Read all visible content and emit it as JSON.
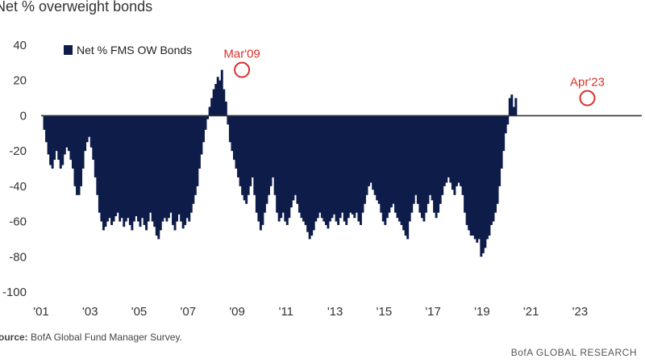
{
  "title": "Net % overweight bonds",
  "footer": {
    "source_label": "Source:",
    "source_text": "BofA Global Fund Manager Survey.",
    "brand": "BofA GLOBAL RESEARCH"
  },
  "colors": {
    "bar": "#0e1c4a",
    "annotation": "#d8322b",
    "zero_line": "#333333"
  },
  "chart_data": {
    "type": "bar",
    "title": "Net % overweight bonds",
    "legend": {
      "label": "Net % FMS OW Bonds",
      "position": "top-left"
    },
    "ylim": [
      -100,
      40
    ],
    "y_ticks": [
      40,
      20,
      0,
      -20,
      -40,
      -60,
      -80,
      -100
    ],
    "y_tick_labels": [
      "40",
      "20",
      "0",
      "-20",
      "-40",
      "-60",
      "-80",
      "-100"
    ],
    "x_range": [
      2001,
      2024.5
    ],
    "x_ticks": [
      2001,
      2003,
      2005,
      2007,
      2009,
      2011,
      2013,
      2015,
      2017,
      2019,
      2021,
      2023
    ],
    "x_tick_labels": [
      "'01",
      "'03",
      "'05",
      "'07",
      "'09",
      "'11",
      "'13",
      "'15",
      "'17",
      "'19",
      "'21",
      "'23"
    ],
    "grid": false,
    "annotations": [
      {
        "label": "Mar'09",
        "x": 2009.2,
        "y": 26
      },
      {
        "label": "Apr'23",
        "x": 2023.3,
        "y": 10
      }
    ],
    "series": [
      {
        "start": "2001-02",
        "frequency": "monthly",
        "values": [
          -8,
          -15,
          -22,
          -28,
          -30,
          -25,
          -20,
          -25,
          -30,
          -28,
          -22,
          -18,
          -20,
          -25,
          -30,
          -40,
          -45,
          -45,
          -40,
          -30,
          -20,
          -15,
          -12,
          -18,
          -25,
          -35,
          -45,
          -55,
          -60,
          -65,
          -63,
          -60,
          -58,
          -62,
          -60,
          -57,
          -55,
          -60,
          -58,
          -63,
          -60,
          -58,
          -62,
          -65,
          -60,
          -57,
          -60,
          -63,
          -58,
          -62,
          -65,
          -60,
          -55,
          -60,
          -63,
          -68,
          -70,
          -65,
          -60,
          -58,
          -60,
          -58,
          -55,
          -62,
          -65,
          -60,
          -56,
          -60,
          -64,
          -62,
          -58,
          -60,
          -55,
          -50,
          -45,
          -40,
          -30,
          -22,
          -15,
          -8,
          -2,
          5,
          10,
          15,
          18,
          22,
          20,
          26,
          15,
          8,
          -5,
          -15,
          -20,
          -25,
          -30,
          -35,
          -40,
          -45,
          -48,
          -50,
          -45,
          -40,
          -35,
          -45,
          -55,
          -60,
          -65,
          -62,
          -55,
          -50,
          -45,
          -40,
          -35,
          -45,
          -55,
          -60,
          -58,
          -55,
          -60,
          -62,
          -58,
          -52,
          -48,
          -45,
          -50,
          -55,
          -58,
          -60,
          -62,
          -66,
          -70,
          -68,
          -65,
          -60,
          -58,
          -55,
          -58,
          -60,
          -62,
          -64,
          -60,
          -58,
          -56,
          -60,
          -62,
          -58,
          -55,
          -60,
          -62,
          -58,
          -55,
          -56,
          -58,
          -55,
          -60,
          -62,
          -55,
          -50,
          -45,
          -40,
          -38,
          -42,
          -45,
          -48,
          -50,
          -55,
          -60,
          -62,
          -58,
          -55,
          -52,
          -50,
          -55,
          -58,
          -60,
          -62,
          -65,
          -68,
          -70,
          -60,
          -55,
          -50,
          -45,
          -50,
          -55,
          -58,
          -60,
          -55,
          -50,
          -45,
          -48,
          -55,
          -58,
          -55,
          -50,
          -45,
          -40,
          -38,
          -35,
          -38,
          -42,
          -45,
          -40,
          -38,
          -40,
          -45,
          -55,
          -62,
          -65,
          -68,
          -68,
          -70,
          -72,
          -70,
          -80,
          -78,
          -75,
          -70,
          -68,
          -62,
          -60,
          -55,
          -50,
          -40,
          -30,
          -20,
          -10,
          -5,
          10,
          12,
          5,
          10,
          0
        ]
      }
    ]
  }
}
